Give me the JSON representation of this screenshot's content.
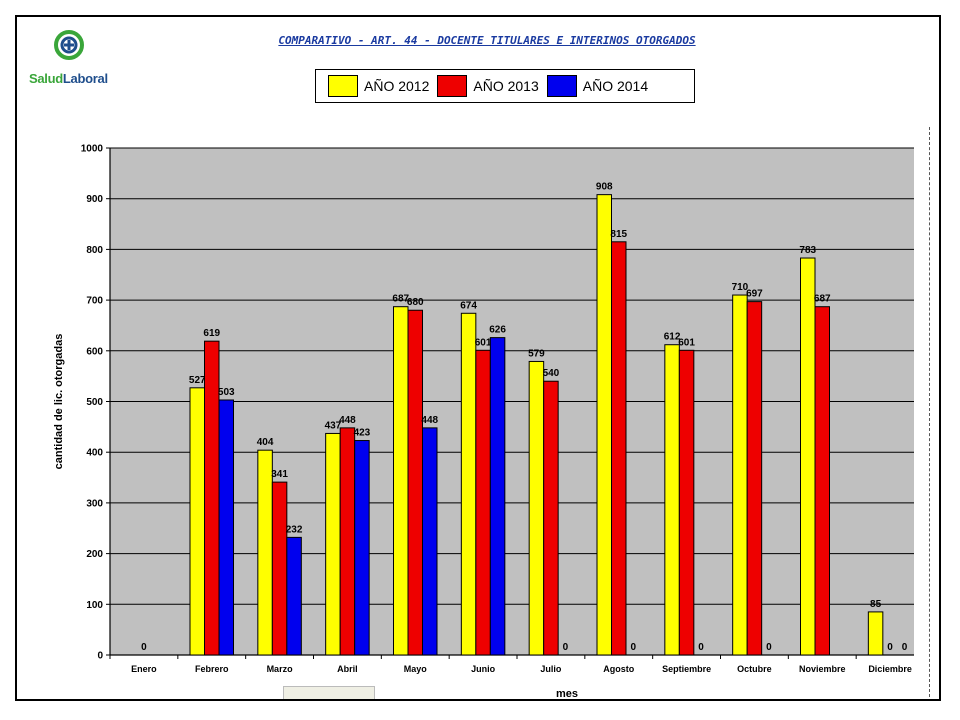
{
  "logo": {
    "brand_part1": "Salud",
    "brand_part2": "Laboral"
  },
  "title": "COMPARATIVO - ART. 44 - DOCENTE TITULARES E INTERINOS OTORGADOS",
  "colors": {
    "y2012": "#ffff00",
    "y2013": "#ee0000",
    "y2014": "#0000ee",
    "plot_bg": "#c0c0c0"
  },
  "chart_data": {
    "type": "bar",
    "ylabel": "cantidad de lic. otorgadas",
    "xlabel": "mes",
    "ylim": [
      0,
      1000
    ],
    "yticks": [
      0,
      100,
      200,
      300,
      400,
      500,
      600,
      700,
      800,
      900,
      1000
    ],
    "grid": true,
    "categories": [
      "Enero",
      "Febrero",
      "Marzo",
      "Abril",
      "Mayo",
      "Junio",
      "Julio",
      "Agosto",
      "Septiembre",
      "Octubre",
      "Noviembre",
      "Diciembre"
    ],
    "series": [
      {
        "name": "AÑO 2012",
        "color": "#ffff00",
        "values": [
          0,
          527,
          404,
          437,
          687,
          674,
          579,
          908,
          612,
          710,
          783,
          85
        ]
      },
      {
        "name": "AÑO 2013",
        "color": "#ee0000",
        "values": [
          0,
          619,
          341,
          448,
          680,
          601,
          540,
          815,
          601,
          697,
          687,
          0
        ]
      },
      {
        "name": "AÑO 2014",
        "color": "#0000ee",
        "values": [
          0,
          503,
          232,
          423,
          448,
          626,
          0,
          0,
          0,
          0,
          0,
          0
        ]
      }
    ],
    "data_labels": [
      [
        "",
        "527",
        "404",
        "437",
        "687",
        "674",
        "579",
        "908",
        "612",
        "710",
        "783",
        "85"
      ],
      [
        "0",
        "619",
        "341",
        "448",
        "680",
        "601",
        "540",
        "815",
        "601",
        "697",
        "687",
        "0"
      ],
      [
        "",
        "503",
        "232",
        "423",
        "448",
        "626",
        "0",
        "0",
        "0",
        "0",
        "",
        "0"
      ]
    ],
    "legend": "top"
  }
}
